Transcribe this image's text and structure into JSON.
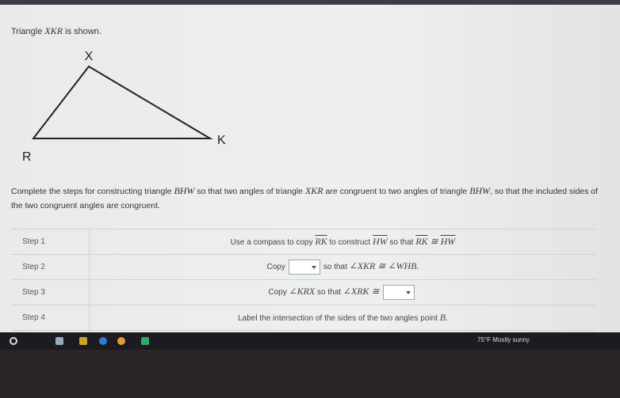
{
  "prompt": [
    "Triangle ",
    "XKR",
    " is shown."
  ],
  "figure": {
    "labels": [
      "X",
      "K",
      "R"
    ]
  },
  "instructions": [
    "Complete the steps for constructing triangle ",
    "BHW",
    " so that two angles of triangle ",
    "XKR",
    " are congruent to two angles of triangle ",
    "BHW",
    ", so that the included sides of the two congruent angles are congruent."
  ],
  "steps": [
    {
      "label": "Step 1",
      "text": [
        "Use a compass to copy ",
        "RK",
        " to construct ",
        "HW",
        " so that ",
        "RK",
        " ≅ ",
        "HW"
      ]
    },
    {
      "label": "Step 2",
      "text": [
        "Copy",
        "so that ",
        "∠XKR ≅ ∠WHB."
      ]
    },
    {
      "label": "Step 3",
      "text": [
        "Copy ",
        "∠KRX",
        " so that ",
        "∠XRK ≅"
      ]
    },
    {
      "label": "Step 4",
      "text": [
        "Label the intersection of the sides of the two angles point ",
        "B",
        "."
      ]
    }
  ],
  "taskbar": {
    "weather": "75°F",
    "condition": "Mostly sunny"
  }
}
